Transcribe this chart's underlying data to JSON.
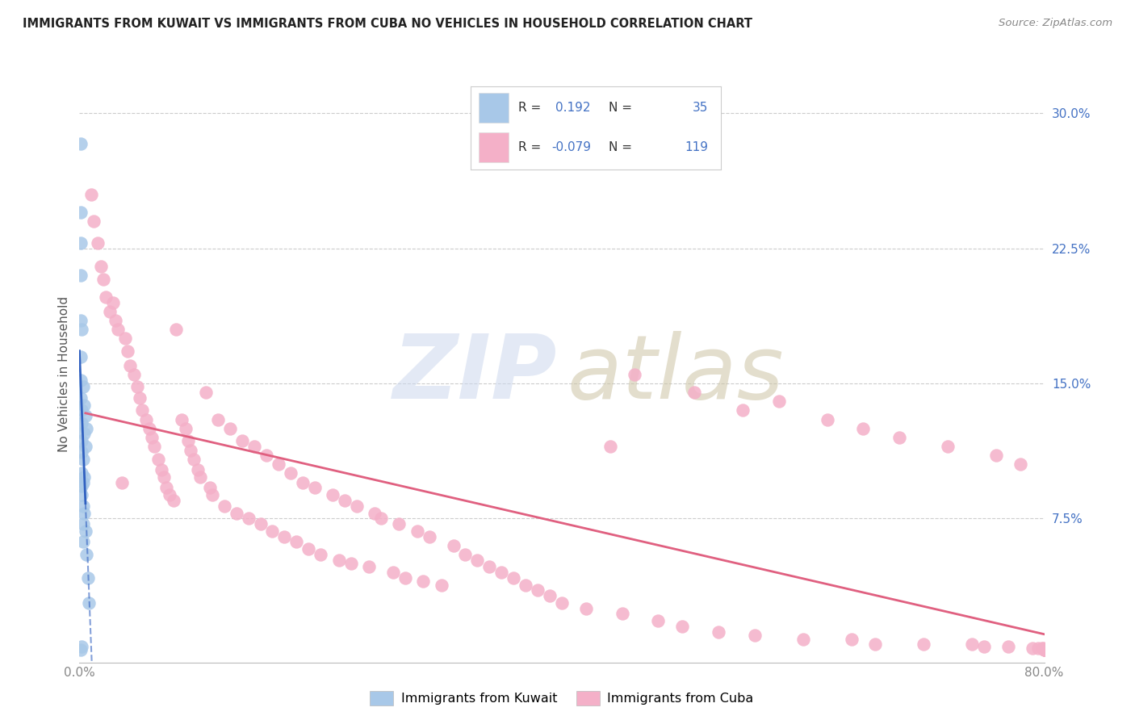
{
  "title": "IMMIGRANTS FROM KUWAIT VS IMMIGRANTS FROM CUBA NO VEHICLES IN HOUSEHOLD CORRELATION CHART",
  "source": "Source: ZipAtlas.com",
  "ylabel": "No Vehicles in Household",
  "xlim": [
    0.0,
    0.8
  ],
  "ylim": [
    -0.005,
    0.315
  ],
  "plot_ylim": [
    0.0,
    0.3
  ],
  "kuwait_color": "#a8c8e8",
  "kuwait_edge_color": "#7aaed0",
  "cuba_color": "#f4b0c8",
  "cuba_edge_color": "#e890a8",
  "kuwait_line_color": "#3060c0",
  "cuba_line_color": "#e06080",
  "watermark_zip_color": "#c8d8f0",
  "watermark_atlas_color": "#c8c0a8",
  "kuwait_R": 0.192,
  "kuwait_N": 35,
  "cuba_R": -0.079,
  "cuba_N": 119,
  "legend_R_color": "#333333",
  "legend_val_color": "#4472c4",
  "right_tick_color": "#4472c4",
  "bottom_tick_color": "#888888",
  "kuwait_x": [
    0.001,
    0.001,
    0.001,
    0.001,
    0.001,
    0.001,
    0.001,
    0.001,
    0.001,
    0.002,
    0.002,
    0.002,
    0.002,
    0.002,
    0.002,
    0.002,
    0.002,
    0.002,
    0.003,
    0.003,
    0.003,
    0.003,
    0.003,
    0.003,
    0.004,
    0.004,
    0.004,
    0.004,
    0.005,
    0.005,
    0.005,
    0.006,
    0.006,
    0.007,
    0.008
  ],
  "kuwait_y": [
    0.283,
    0.245,
    0.228,
    0.21,
    0.185,
    0.165,
    0.152,
    0.142,
    0.002,
    0.18,
    0.135,
    0.128,
    0.118,
    0.112,
    0.1,
    0.093,
    0.088,
    0.004,
    0.148,
    0.108,
    0.095,
    0.082,
    0.072,
    0.062,
    0.138,
    0.122,
    0.098,
    0.078,
    0.132,
    0.115,
    0.068,
    0.125,
    0.055,
    0.042,
    0.028
  ],
  "cuba_x": [
    0.01,
    0.012,
    0.015,
    0.018,
    0.02,
    0.022,
    0.025,
    0.028,
    0.03,
    0.032,
    0.035,
    0.038,
    0.04,
    0.042,
    0.045,
    0.048,
    0.05,
    0.052,
    0.055,
    0.058,
    0.06,
    0.062,
    0.065,
    0.068,
    0.07,
    0.072,
    0.075,
    0.078,
    0.08,
    0.085,
    0.088,
    0.09,
    0.092,
    0.095,
    0.098,
    0.1,
    0.105,
    0.108,
    0.11,
    0.115,
    0.12,
    0.125,
    0.13,
    0.135,
    0.14,
    0.145,
    0.15,
    0.155,
    0.16,
    0.165,
    0.17,
    0.175,
    0.18,
    0.185,
    0.19,
    0.195,
    0.2,
    0.21,
    0.215,
    0.22,
    0.225,
    0.23,
    0.24,
    0.245,
    0.25,
    0.26,
    0.265,
    0.27,
    0.28,
    0.285,
    0.29,
    0.3,
    0.31,
    0.32,
    0.33,
    0.34,
    0.35,
    0.36,
    0.37,
    0.38,
    0.39,
    0.4,
    0.42,
    0.44,
    0.45,
    0.46,
    0.48,
    0.5,
    0.51,
    0.53,
    0.55,
    0.56,
    0.58,
    0.6,
    0.62,
    0.64,
    0.65,
    0.66,
    0.68,
    0.7,
    0.72,
    0.74,
    0.75,
    0.76,
    0.77,
    0.78,
    0.79,
    0.795,
    0.798,
    0.799,
    0.8,
    0.8,
    0.8,
    0.8,
    0.8
  ],
  "cuba_y": [
    0.255,
    0.24,
    0.228,
    0.215,
    0.208,
    0.198,
    0.19,
    0.195,
    0.185,
    0.18,
    0.095,
    0.175,
    0.168,
    0.16,
    0.155,
    0.148,
    0.142,
    0.135,
    0.13,
    0.125,
    0.12,
    0.115,
    0.108,
    0.102,
    0.098,
    0.092,
    0.088,
    0.085,
    0.18,
    0.13,
    0.125,
    0.118,
    0.113,
    0.108,
    0.102,
    0.098,
    0.145,
    0.092,
    0.088,
    0.13,
    0.082,
    0.125,
    0.078,
    0.118,
    0.075,
    0.115,
    0.072,
    0.11,
    0.068,
    0.105,
    0.065,
    0.1,
    0.062,
    0.095,
    0.058,
    0.092,
    0.055,
    0.088,
    0.052,
    0.085,
    0.05,
    0.082,
    0.048,
    0.078,
    0.075,
    0.045,
    0.072,
    0.042,
    0.068,
    0.04,
    0.065,
    0.038,
    0.06,
    0.055,
    0.052,
    0.048,
    0.045,
    0.042,
    0.038,
    0.035,
    0.032,
    0.028,
    0.025,
    0.115,
    0.022,
    0.155,
    0.018,
    0.015,
    0.145,
    0.012,
    0.135,
    0.01,
    0.14,
    0.008,
    0.13,
    0.008,
    0.125,
    0.005,
    0.12,
    0.005,
    0.115,
    0.005,
    0.004,
    0.11,
    0.004,
    0.105,
    0.003,
    0.003,
    0.003,
    0.003,
    0.002,
    0.002,
    0.002,
    0.002,
    0.002
  ]
}
